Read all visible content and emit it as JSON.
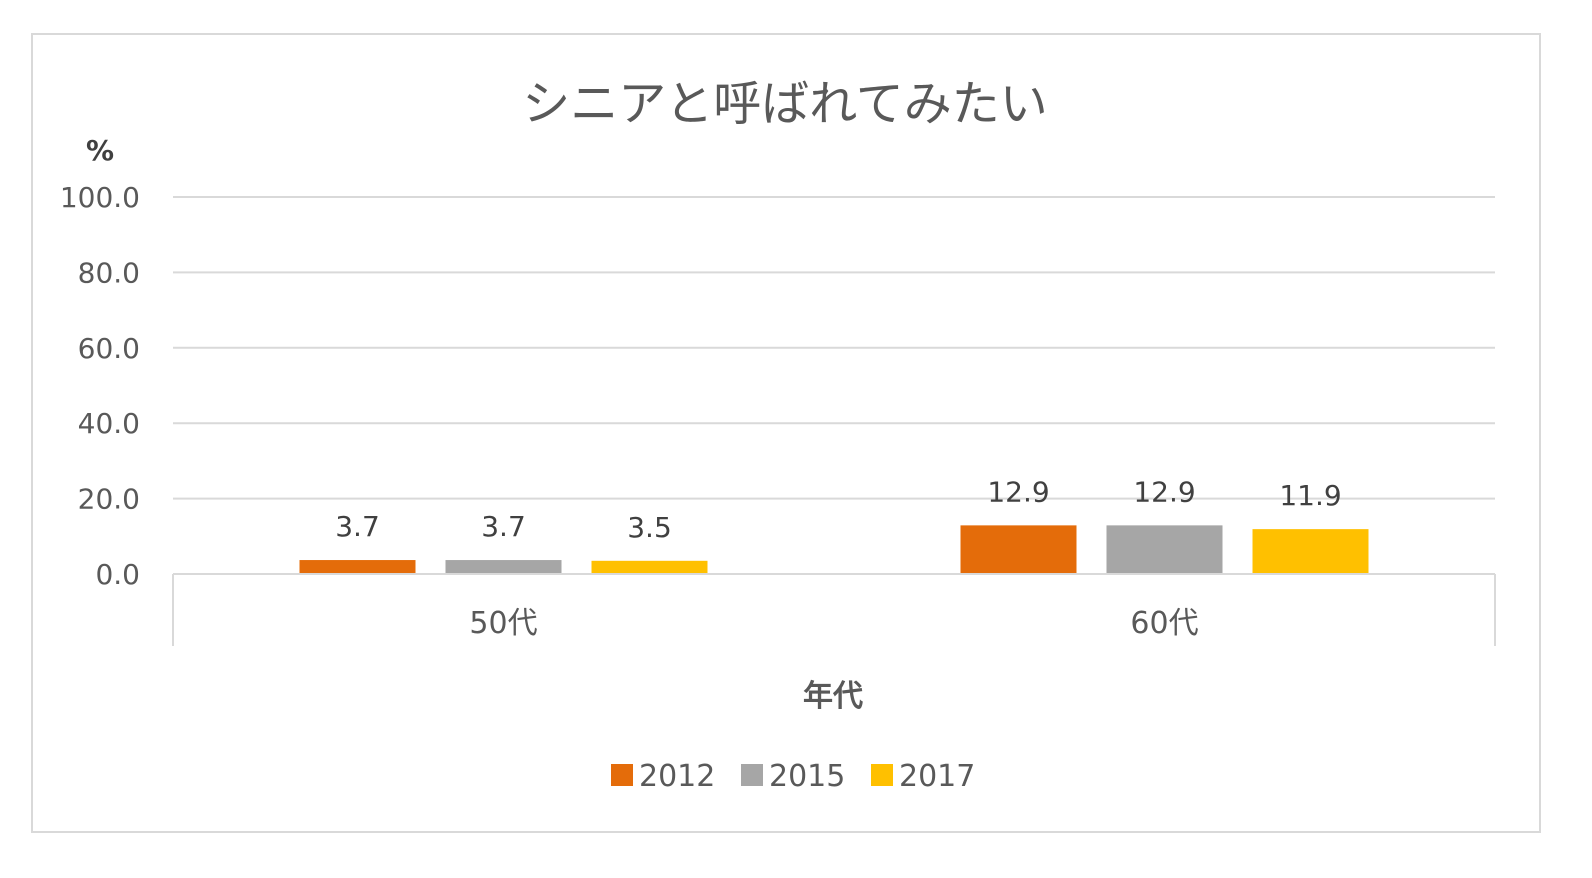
{
  "chart_data": {
    "type": "bar",
    "title": "シニアと呼ばれてみたい",
    "ylabel": "%",
    "xlabel": "年代",
    "categories": [
      "50代",
      "60代"
    ],
    "series": [
      {
        "name": "2012",
        "values": [
          3.7,
          12.9
        ],
        "color": "#E46C0A"
      },
      {
        "name": "2015",
        "values": [
          3.7,
          12.9
        ],
        "color": "#A6A6A6"
      },
      {
        "name": "2017",
        "values": [
          3.5,
          11.9
        ],
        "color": "#FFC000"
      }
    ],
    "ylim": [
      0,
      100
    ],
    "yticks": [
      "0.0",
      "20.0",
      "40.0",
      "60.0",
      "80.0",
      "100.0"
    ],
    "ytick_values": [
      0,
      20,
      40,
      60,
      80,
      100
    ],
    "grid": true,
    "legend_position": "bottom"
  }
}
